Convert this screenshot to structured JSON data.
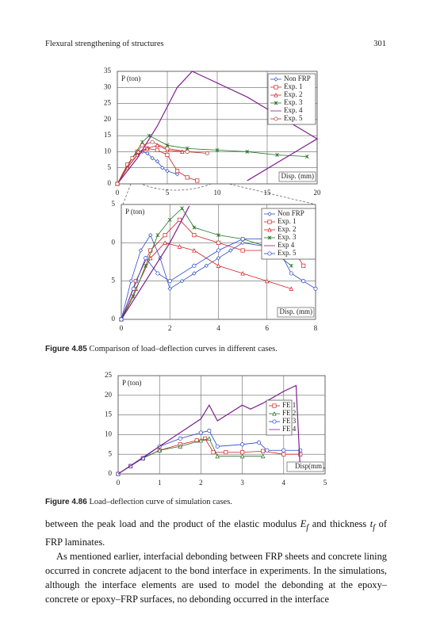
{
  "header": {
    "title": "Flexural strengthening of structures",
    "page": "301"
  },
  "captions": [
    {
      "label": "Figure 4.85",
      "text": "Comparison of load–deflection curves in different cases."
    },
    {
      "label": "Figure 4.86",
      "text": "Load–deflection curve of simulation cases."
    }
  ],
  "body": [
    [
      "between the peak load and the product of the elastic modulus ",
      "E",
      "f",
      " and thickness ",
      "t",
      "f",
      " of FRP laminates."
    ],
    [
      "As mentioned earlier, interfacial debonding between FRP sheets and concrete lining occurred in concrete adjacent to the bond interface in experiments. In the simulations, although the interface elements are used to model the debonding at the epoxy–concrete or epoxy–FRP surfaces, no debonding occurred in the interface"
    ]
  ],
  "chart_data": [
    {
      "type": "line",
      "ylabel": "P (ton)",
      "xlabel": "Disp. (mm)",
      "grid": true,
      "xlim": [
        0,
        20
      ],
      "xticks": [
        0,
        5,
        10,
        15,
        20
      ],
      "ylim": [
        0,
        35
      ],
      "yticks": [
        0,
        5,
        10,
        15,
        20,
        25,
        30,
        35
      ],
      "series": [
        {
          "name": "Non FRP",
          "color": "#3050c0",
          "marker": "diamond",
          "x": [
            0,
            1,
            2,
            2.5,
            3,
            3.5,
            4,
            4.5,
            5,
            6
          ],
          "values": [
            0,
            5,
            9,
            10,
            9.5,
            8,
            7,
            5,
            4,
            3
          ]
        },
        {
          "name": "Exp. 1",
          "color": "#d02020",
          "marker": "square",
          "x": [
            0,
            1,
            2,
            3,
            4,
            5,
            6,
            7,
            8
          ],
          "values": [
            0,
            6,
            10,
            11,
            10.5,
            9,
            4,
            2,
            1
          ]
        },
        {
          "name": "Exp. 2",
          "color": "#d02020",
          "marker": "triangle",
          "x": [
            0,
            1,
            2,
            3,
            4,
            5,
            6.5
          ],
          "values": [
            0,
            5,
            9,
            11,
            12,
            10.5,
            10
          ]
        },
        {
          "name": "Exp. 3",
          "color": "#207020",
          "marker": "star",
          "x": [
            0,
            1.5,
            2.5,
            3.2,
            5,
            7,
            10,
            13,
            16,
            19
          ],
          "values": [
            0,
            8,
            13,
            15,
            12,
            11,
            10.5,
            10,
            9,
            8.5
          ]
        },
        {
          "name": "Exp. 4",
          "color": "#802090",
          "marker": "none",
          "x": [
            0,
            2,
            4,
            6,
            7.5,
            13,
            20,
            13
          ],
          "values": [
            0,
            8,
            18,
            30,
            35,
            27,
            14,
            1
          ]
        },
        {
          "name": "Exp. 5",
          "color": "#c03020",
          "marker": "circle",
          "x": [
            0,
            1.5,
            2.5,
            3.5,
            5,
            7,
            9
          ],
          "values": [
            0,
            8,
            12,
            13,
            11,
            10,
            9.5
          ]
        }
      ]
    },
    {
      "type": "line",
      "ylabel": "P (ton)",
      "xlabel": "Disp. (mm)",
      "grid": true,
      "xlim": [
        0,
        8
      ],
      "xticks": [
        0,
        2,
        4,
        6,
        8
      ],
      "ylim": [
        0,
        15
      ],
      "yticks": [
        0,
        5,
        {
          "value": 10,
          "label": "0"
        },
        {
          "value": 15,
          "label": "5"
        }
      ],
      "series": [
        {
          "name": "Non FRP",
          "color": "#3050c0",
          "marker": "diamond",
          "x": [
            0,
            0.4,
            0.8,
            1.2,
            1.6,
            2.0,
            2.5,
            3,
            3.5,
            4,
            4.5,
            5,
            6,
            7
          ],
          "values": [
            0,
            5,
            9,
            11,
            8,
            4,
            5,
            6,
            7,
            8,
            9,
            10,
            9.5,
            8.5
          ]
        },
        {
          "name": "Exp. 1",
          "color": "#d02020",
          "marker": "square",
          "x": [
            0,
            0.6,
            1.2,
            1.8,
            2.4,
            3,
            4,
            5,
            6,
            7,
            7.5
          ],
          "values": [
            0,
            5,
            9,
            11,
            13,
            11,
            10,
            9,
            9,
            9.5,
            7
          ]
        },
        {
          "name": "Exp. 2",
          "color": "#d02020",
          "marker": "triangle",
          "x": [
            0,
            0.6,
            1.2,
            1.8,
            2.4,
            3,
            4,
            5,
            6,
            7
          ],
          "values": [
            0,
            4,
            8,
            10,
            9.5,
            9,
            7,
            6,
            5,
            4
          ]
        },
        {
          "name": "Exp. 3",
          "color": "#207020",
          "marker": "star",
          "x": [
            0,
            0.5,
            1,
            1.5,
            2,
            2.5,
            3,
            4,
            5,
            6,
            7
          ],
          "values": [
            0,
            3,
            7,
            11,
            13,
            14.5,
            12,
            11,
            10.5,
            9.5,
            7
          ]
        },
        {
          "name": "Exp 4",
          "color": "#802090",
          "marker": "none",
          "x": [
            0,
            1,
            2,
            2.8
          ],
          "values": [
            0,
            5,
            10,
            14.8
          ]
        },
        {
          "name": "Exp. 5",
          "color": "#2040d0",
          "marker": "circle",
          "x": [
            0,
            0.5,
            1,
            1.5,
            2,
            3,
            4,
            5,
            6,
            6.5,
            7,
            7.5,
            8
          ],
          "values": [
            0,
            4,
            8,
            6,
            5,
            7,
            9,
            10.5,
            10.5,
            9,
            6,
            5,
            4
          ]
        }
      ]
    },
    {
      "type": "line",
      "ylabel": "P (ton)",
      "xlabel": "Disp(mm",
      "grid": true,
      "xlim": [
        0,
        5
      ],
      "xticks": [
        0,
        1,
        2,
        3,
        4,
        5
      ],
      "ylim": [
        0,
        25
      ],
      "yticks": [
        0,
        5,
        10,
        15,
        20,
        25
      ],
      "series": [
        {
          "name": "FE 1",
          "color": "#d02020",
          "marker": "square",
          "x": [
            0,
            0.3,
            0.6,
            1,
            1.5,
            1.9,
            2.1,
            2.3,
            2.6,
            3,
            3.5,
            4,
            4.4
          ],
          "values": [
            0,
            2,
            4,
            6,
            7.5,
            8.5,
            9,
            5.5,
            5.5,
            5.5,
            5.8,
            5,
            5
          ]
        },
        {
          "name": "FE 2",
          "color": "#207020",
          "marker": "triangle",
          "x": [
            0,
            0.3,
            0.6,
            1,
            1.5,
            2,
            2.2,
            2.4,
            3,
            3.5
          ],
          "values": [
            0,
            2,
            4,
            6,
            7,
            8.5,
            9,
            4.5,
            4.5,
            4.5
          ]
        },
        {
          "name": "FE 3",
          "color": "#2040d0",
          "marker": "circle",
          "x": [
            0,
            0.3,
            0.6,
            1,
            1.5,
            2,
            2.2,
            2.4,
            3,
            3.4,
            3.6,
            4,
            4.4
          ],
          "values": [
            0,
            2,
            4,
            7,
            9,
            10.5,
            11,
            7,
            7.5,
            8,
            6,
            6,
            6
          ]
        },
        {
          "name": "FE 4",
          "color": "#802090",
          "marker": "none",
          "x": [
            0,
            0.5,
            1,
            1.5,
            2,
            2.2,
            2.4,
            3,
            3.2,
            3.5,
            4,
            4.2,
            4.3,
            4.4,
            4.7,
            5
          ],
          "values": [
            0,
            3.5,
            7,
            10.5,
            14,
            17.5,
            13.5,
            17.5,
            16.5,
            18,
            21,
            22,
            22.5,
            1,
            1.5,
            1.5
          ]
        }
      ]
    }
  ]
}
